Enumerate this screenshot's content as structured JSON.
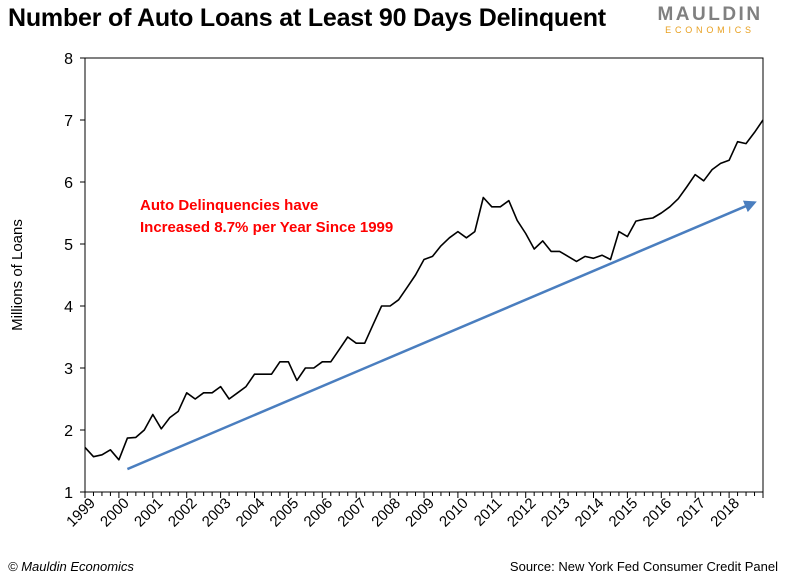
{
  "header": {
    "title": "Number of Auto Loans at Least 90 Days Delinquent",
    "logo_main": "MAULDIN",
    "logo_sub": "ECONOMICS"
  },
  "footer": {
    "credit": "© Mauldin Economics",
    "source": "Source: New York Fed Consumer Credit Panel"
  },
  "colors": {
    "series": "#000000",
    "trend": "#4a7ebf",
    "annotation": "#ff0000"
  },
  "chart_data": {
    "type": "line",
    "title": "Number of Auto Loans at Least 90 Days Delinquent",
    "ylabel": "Millions of Loans",
    "xlabel": "",
    "ylim": [
      1,
      8
    ],
    "xlim": [
      1999,
      2019
    ],
    "y_ticks": [
      1,
      2,
      3,
      4,
      5,
      6,
      7,
      8
    ],
    "x_tick_labels": [
      "1999",
      "2000",
      "2001",
      "2002",
      "2003",
      "2004",
      "2005",
      "2006",
      "2007",
      "2008",
      "2009",
      "2010",
      "2011",
      "2012",
      "2013",
      "2014",
      "2015",
      "2016",
      "2017",
      "2018"
    ],
    "grid": false,
    "annotation": {
      "line1": "Auto Delinquencies have",
      "line2": "Increased 8.7% per Year Since 1999"
    },
    "series": [
      {
        "type": "line",
        "x_start": 1999,
        "x_step": 0.25,
        "values": [
          1.72,
          1.57,
          1.6,
          1.68,
          1.52,
          1.87,
          1.88,
          2.0,
          2.25,
          2.02,
          2.2,
          2.3,
          2.6,
          2.5,
          2.6,
          2.6,
          2.7,
          2.5,
          2.6,
          2.7,
          2.9,
          2.9,
          2.9,
          3.1,
          3.1,
          2.8,
          3.0,
          3.0,
          3.1,
          3.1,
          3.3,
          3.5,
          3.4,
          3.4,
          3.7,
          4.0,
          4.0,
          4.1,
          4.3,
          4.5,
          4.75,
          4.8,
          4.97,
          5.1,
          5.2,
          5.1,
          5.2,
          5.75,
          5.6,
          5.6,
          5.7,
          5.38,
          5.17,
          4.92,
          5.05,
          4.88,
          4.88,
          4.8,
          4.72,
          4.8,
          4.77,
          4.82,
          4.75,
          5.2,
          5.12,
          5.37,
          5.4,
          5.42,
          5.5,
          5.6,
          5.73,
          5.92,
          6.12,
          6.02,
          6.2,
          6.3,
          6.35,
          6.65,
          6.62,
          6.8,
          7.0
        ]
      },
      {
        "type": "trend",
        "x": [
          2000.25,
          2018.75
        ],
        "y": [
          1.37,
          5.67
        ]
      }
    ]
  }
}
